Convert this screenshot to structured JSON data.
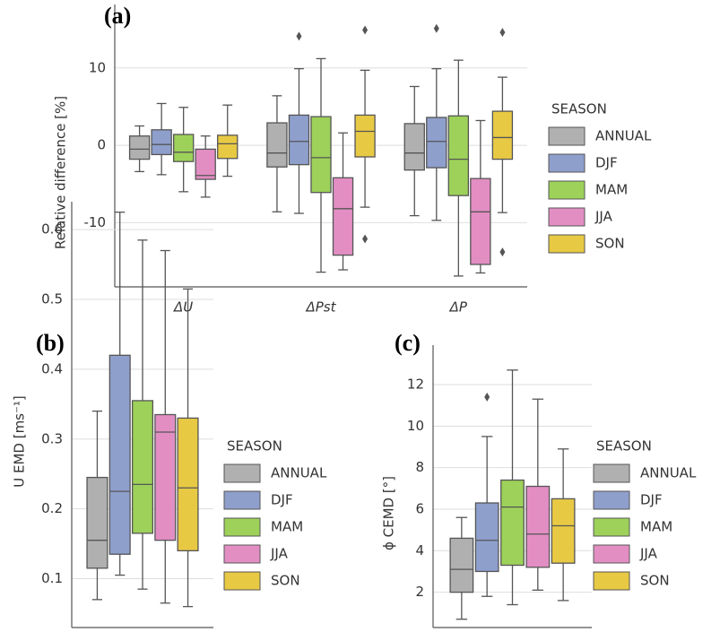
{
  "chart_data": [
    {
      "type": "box",
      "panel_label": "(a)",
      "ylabel": "Relative difference [%]",
      "categories": [
        "ΔU",
        "ΔPst",
        "ΔP"
      ],
      "ylim": [
        -18.3,
        18.2
      ],
      "yticks": [
        -10,
        0,
        10
      ],
      "grid": true,
      "legend_title": "SEASON",
      "series": [
        {
          "name": "ANNUAL",
          "color": "#b0b0b0",
          "values": [
            {
              "low": -3.4,
              "q1": -1.8,
              "median": -0.5,
              "q3": 1.2,
              "high": 2.5
            },
            {
              "low": -8.6,
              "q1": -2.8,
              "median": -1.0,
              "q3": 2.9,
              "high": 6.4
            },
            {
              "low": -9.1,
              "q1": -3.2,
              "median": -1.0,
              "q3": 2.8,
              "high": 7.6
            }
          ]
        },
        {
          "name": "DJF",
          "color": "#8e9fcc",
          "values": [
            {
              "low": -3.8,
              "q1": -1.2,
              "median": 0.1,
              "q3": 2.0,
              "high": 5.4
            },
            {
              "low": -8.8,
              "q1": -2.5,
              "median": 0.5,
              "q3": 3.9,
              "high": 9.9,
              "outliers": [
                14.1
              ]
            },
            {
              "low": -9.7,
              "q1": -2.9,
              "median": 0.5,
              "q3": 3.6,
              "high": 9.9,
              "outliers": [
                15.1
              ]
            }
          ]
        },
        {
          "name": "MAM",
          "color": "#9dd15a",
          "values": [
            {
              "low": -6.0,
              "q1": -2.1,
              "median": -0.9,
              "q3": 1.4,
              "high": 4.9
            },
            {
              "low": -16.4,
              "q1": -6.1,
              "median": -1.6,
              "q3": 3.7,
              "high": 11.2
            },
            {
              "low": -16.9,
              "q1": -6.5,
              "median": -1.8,
              "q3": 3.8,
              "high": 11.0
            }
          ]
        },
        {
          "name": "JJA",
          "color": "#e28ec3",
          "values": [
            {
              "low": -6.7,
              "q1": -4.4,
              "median": -3.9,
              "q3": -0.5,
              "high": 1.2
            },
            {
              "low": -16.1,
              "q1": -14.2,
              "median": -8.2,
              "q3": -4.2,
              "high": 1.6
            },
            {
              "low": -16.5,
              "q1": -15.4,
              "median": -8.6,
              "q3": -4.3,
              "high": 3.2
            }
          ]
        },
        {
          "name": "SON",
          "color": "#e8c944",
          "values": [
            {
              "low": -4.0,
              "q1": -1.7,
              "median": 0.2,
              "q3": 1.3,
              "high": 5.2
            },
            {
              "low": -8.0,
              "q1": -1.5,
              "median": 1.8,
              "q3": 3.9,
              "high": 9.7,
              "outliers": [
                14.9,
                -12.1
              ]
            },
            {
              "low": -8.7,
              "q1": -1.8,
              "median": 1.0,
              "q3": 4.4,
              "high": 8.8,
              "outliers": [
                14.6,
                -13.8
              ]
            }
          ]
        }
      ]
    },
    {
      "type": "box",
      "panel_label": "(b)",
      "ylabel": "U EMD [ms⁻¹]",
      "ylim": [
        0.03,
        0.64
      ],
      "yticks": [
        0.1,
        0.2,
        0.3,
        0.4,
        0.5,
        0.6
      ],
      "grid": true,
      "legend_title": "SEASON",
      "series": [
        {
          "name": "ANNUAL",
          "color": "#b0b0b0",
          "values": [
            {
              "low": 0.07,
              "q1": 0.115,
              "median": 0.155,
              "q3": 0.245,
              "high": 0.34
            }
          ]
        },
        {
          "name": "DJF",
          "color": "#8e9fcc",
          "values": [
            {
              "low": 0.105,
              "q1": 0.135,
              "median": 0.225,
              "q3": 0.42,
              "high": 0.625
            }
          ]
        },
        {
          "name": "MAM",
          "color": "#9dd15a",
          "values": [
            {
              "low": 0.085,
              "q1": 0.165,
              "median": 0.235,
              "q3": 0.355,
              "high": 0.585
            }
          ]
        },
        {
          "name": "JJA",
          "color": "#e28ec3",
          "values": [
            {
              "low": 0.065,
              "q1": 0.155,
              "median": 0.31,
              "q3": 0.335,
              "high": 0.57
            }
          ]
        },
        {
          "name": "SON",
          "color": "#e8c944",
          "values": [
            {
              "low": 0.06,
              "q1": 0.14,
              "median": 0.23,
              "q3": 0.33,
              "high": 0.515
            }
          ]
        }
      ]
    },
    {
      "type": "box",
      "panel_label": "(c)",
      "ylabel": "ϕ CEMD [°]",
      "ylim": [
        0.3,
        13.9
      ],
      "yticks": [
        2,
        4,
        6,
        8,
        10,
        12
      ],
      "grid": true,
      "legend_title": "SEASON",
      "series": [
        {
          "name": "ANNUAL",
          "color": "#b0b0b0",
          "values": [
            {
              "low": 0.7,
              "q1": 2.0,
              "median": 3.1,
              "q3": 4.6,
              "high": 5.6
            }
          ]
        },
        {
          "name": "DJF",
          "color": "#8e9fcc",
          "values": [
            {
              "low": 1.8,
              "q1": 3.0,
              "median": 4.5,
              "q3": 6.3,
              "high": 9.5,
              "outliers": [
                11.4
              ]
            }
          ]
        },
        {
          "name": "MAM",
          "color": "#9dd15a",
          "values": [
            {
              "low": 1.4,
              "q1": 3.3,
              "median": 6.1,
              "q3": 7.4,
              "high": 12.7
            }
          ]
        },
        {
          "name": "JJA",
          "color": "#e28ec3",
          "values": [
            {
              "low": 2.1,
              "q1": 3.2,
              "median": 4.8,
              "q3": 7.1,
              "high": 11.3
            }
          ]
        },
        {
          "name": "SON",
          "color": "#e8c944",
          "values": [
            {
              "low": 1.6,
              "q1": 3.4,
              "median": 5.2,
              "q3": 6.5,
              "high": 8.9
            }
          ]
        }
      ]
    }
  ]
}
